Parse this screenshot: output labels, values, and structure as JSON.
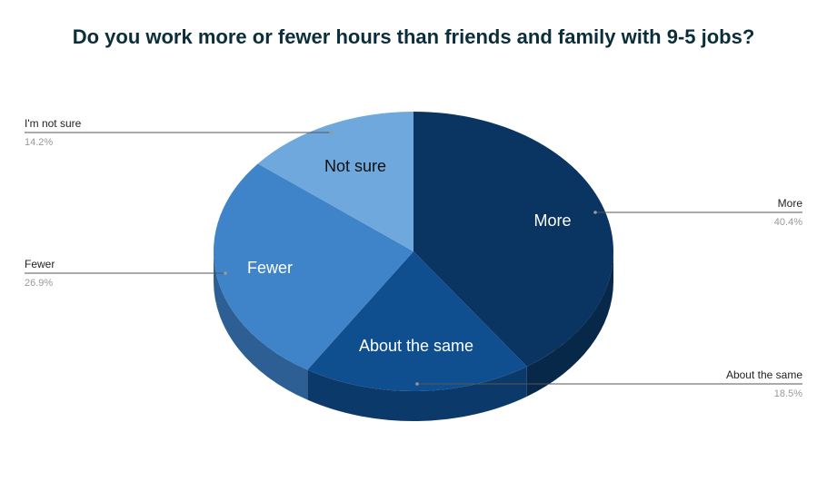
{
  "chart_data": {
    "type": "pie",
    "title": "Do you work more or fewer hours than friends and family with 9-5 jobs?",
    "slices": [
      {
        "label": "More",
        "inner_label": "More",
        "value": 40.4,
        "value_label": "40.4%",
        "color": "#0a3563",
        "side_color": "#072849"
      },
      {
        "label": "About the same",
        "inner_label": "About the same",
        "value": 18.5,
        "value_label": "18.5%",
        "color": "#0f4f8f",
        "side_color": "#0b3a6a"
      },
      {
        "label": "Fewer",
        "inner_label": "Fewer",
        "value": 26.9,
        "value_label": "26.9%",
        "color": "#3f83c8",
        "side_color": "#2d5f94"
      },
      {
        "label": "I'm not sure",
        "inner_label": "Not sure",
        "value": 14.2,
        "value_label": "14.2%",
        "color": "#6fa8dc",
        "side_color": "#5183b4"
      }
    ],
    "legend": "callouts"
  }
}
